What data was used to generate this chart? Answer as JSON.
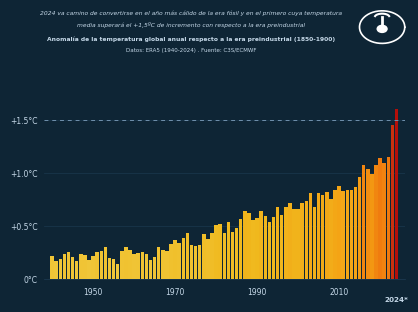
{
  "title_line1": "2024 va camino de convertirse en el año más cálido de la era fósil y en el primero cuya temperatura",
  "title_line2": "media superará el +1,5ºC de incremento con respecto a la era preindustrial",
  "subtitle": "Anomalía de la temperatura global anual respecto a la era preindustrial (1850-1900)",
  "source": "Datos: ERA5 (1940-2024) . Fuente: C3S/ECMWF",
  "bg_color": "#0e2535",
  "bar_values": [
    0.22,
    0.17,
    0.19,
    0.24,
    0.26,
    0.21,
    0.17,
    0.24,
    0.23,
    0.18,
    0.22,
    0.26,
    0.27,
    0.3,
    0.2,
    0.19,
    0.14,
    0.27,
    0.3,
    0.28,
    0.24,
    0.25,
    0.26,
    0.24,
    0.18,
    0.21,
    0.3,
    0.28,
    0.27,
    0.33,
    0.37,
    0.34,
    0.39,
    0.44,
    0.32,
    0.31,
    0.32,
    0.43,
    0.38,
    0.44,
    0.51,
    0.52,
    0.44,
    0.54,
    0.45,
    0.48,
    0.57,
    0.64,
    0.62,
    0.56,
    0.58,
    0.64,
    0.6,
    0.54,
    0.59,
    0.68,
    0.61,
    0.68,
    0.72,
    0.66,
    0.66,
    0.72,
    0.74,
    0.81,
    0.68,
    0.81,
    0.79,
    0.82,
    0.76,
    0.84,
    0.88,
    0.83,
    0.84,
    0.84,
    0.87,
    0.96,
    1.08,
    1.04,
    0.99,
    1.08,
    1.14,
    1.1,
    1.15,
    1.45,
    1.6
  ],
  "years": [
    1940,
    1941,
    1942,
    1943,
    1944,
    1945,
    1946,
    1947,
    1948,
    1949,
    1950,
    1951,
    1952,
    1953,
    1954,
    1955,
    1956,
    1957,
    1958,
    1959,
    1960,
    1961,
    1962,
    1963,
    1964,
    1965,
    1966,
    1967,
    1968,
    1969,
    1970,
    1971,
    1972,
    1973,
    1974,
    1975,
    1976,
    1977,
    1978,
    1979,
    1980,
    1981,
    1982,
    1983,
    1984,
    1985,
    1986,
    1987,
    1988,
    1989,
    1990,
    1991,
    1992,
    1993,
    1994,
    1995,
    1996,
    1997,
    1998,
    1999,
    2000,
    2001,
    2002,
    2003,
    2004,
    2005,
    2006,
    2007,
    2008,
    2009,
    2010,
    2011,
    2012,
    2013,
    2014,
    2015,
    2016,
    2017,
    2018,
    2019,
    2020,
    2021,
    2022,
    2023,
    2024
  ],
  "threshold_line": 1.5,
  "ylim": [
    0,
    1.75
  ],
  "yticks": [
    0.0,
    0.5,
    1.0,
    1.5
  ],
  "ytick_labels": [
    "0°C",
    "+0.5°C",
    "+1.0°C",
    "+1.5°C"
  ],
  "xticks": [
    1950,
    1970,
    1990,
    2010
  ],
  "xlabel_last": "2024*",
  "text_color": "#c5d8e8",
  "grid_color": "#1e3d55",
  "dashed_line_color": "#7a9ab8"
}
